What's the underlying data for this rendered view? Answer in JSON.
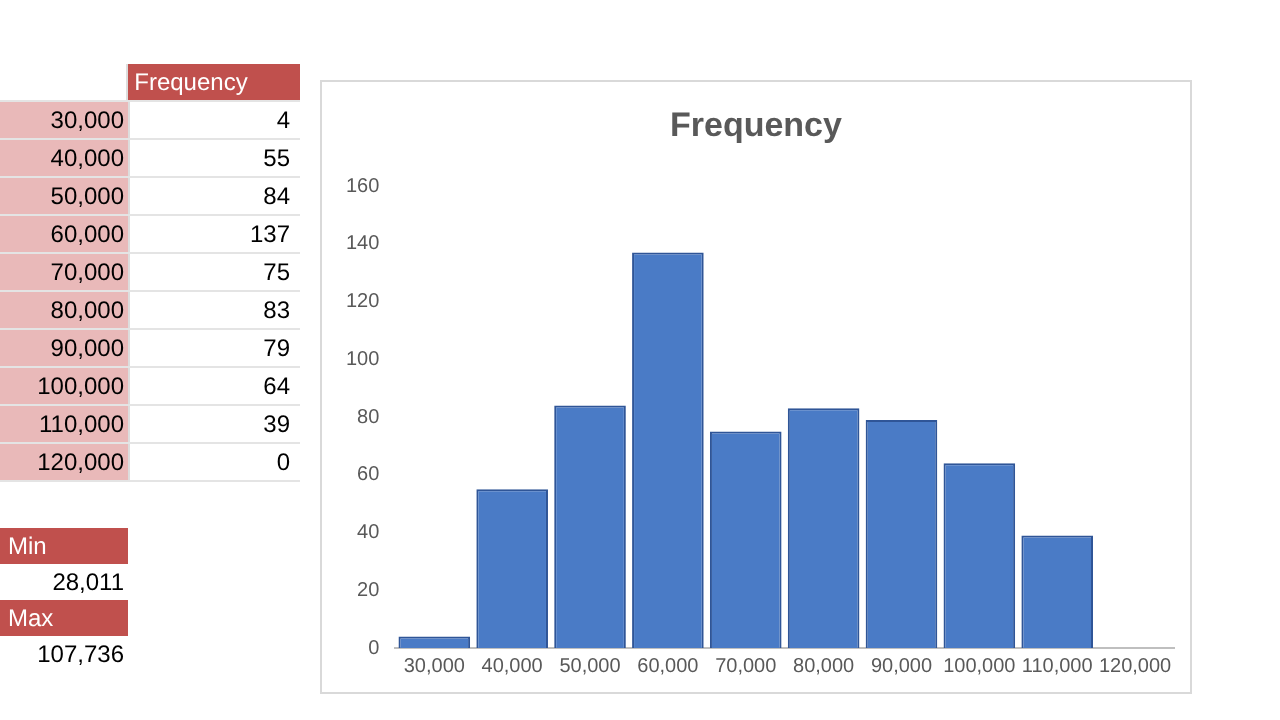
{
  "chart_data": {
    "type": "bar",
    "title": "Frequency",
    "categories": [
      "30,000",
      "40,000",
      "50,000",
      "60,000",
      "70,000",
      "80,000",
      "90,000",
      "100,000",
      "110,000",
      "120,000"
    ],
    "values": [
      4,
      55,
      84,
      137,
      75,
      83,
      79,
      64,
      39,
      0
    ],
    "color": "#4a7bc6",
    "ylim": [
      0,
      160
    ],
    "yticks": [
      0,
      20,
      40,
      60,
      80,
      100,
      120,
      140,
      160
    ],
    "grid": false,
    "legend": false,
    "annotations": [
      "4",
      "55",
      "84",
      "137",
      "75",
      "83",
      "79",
      "64",
      "39",
      "0",
      "Min",
      "28,011",
      "Max",
      "107,736"
    ]
  }
}
